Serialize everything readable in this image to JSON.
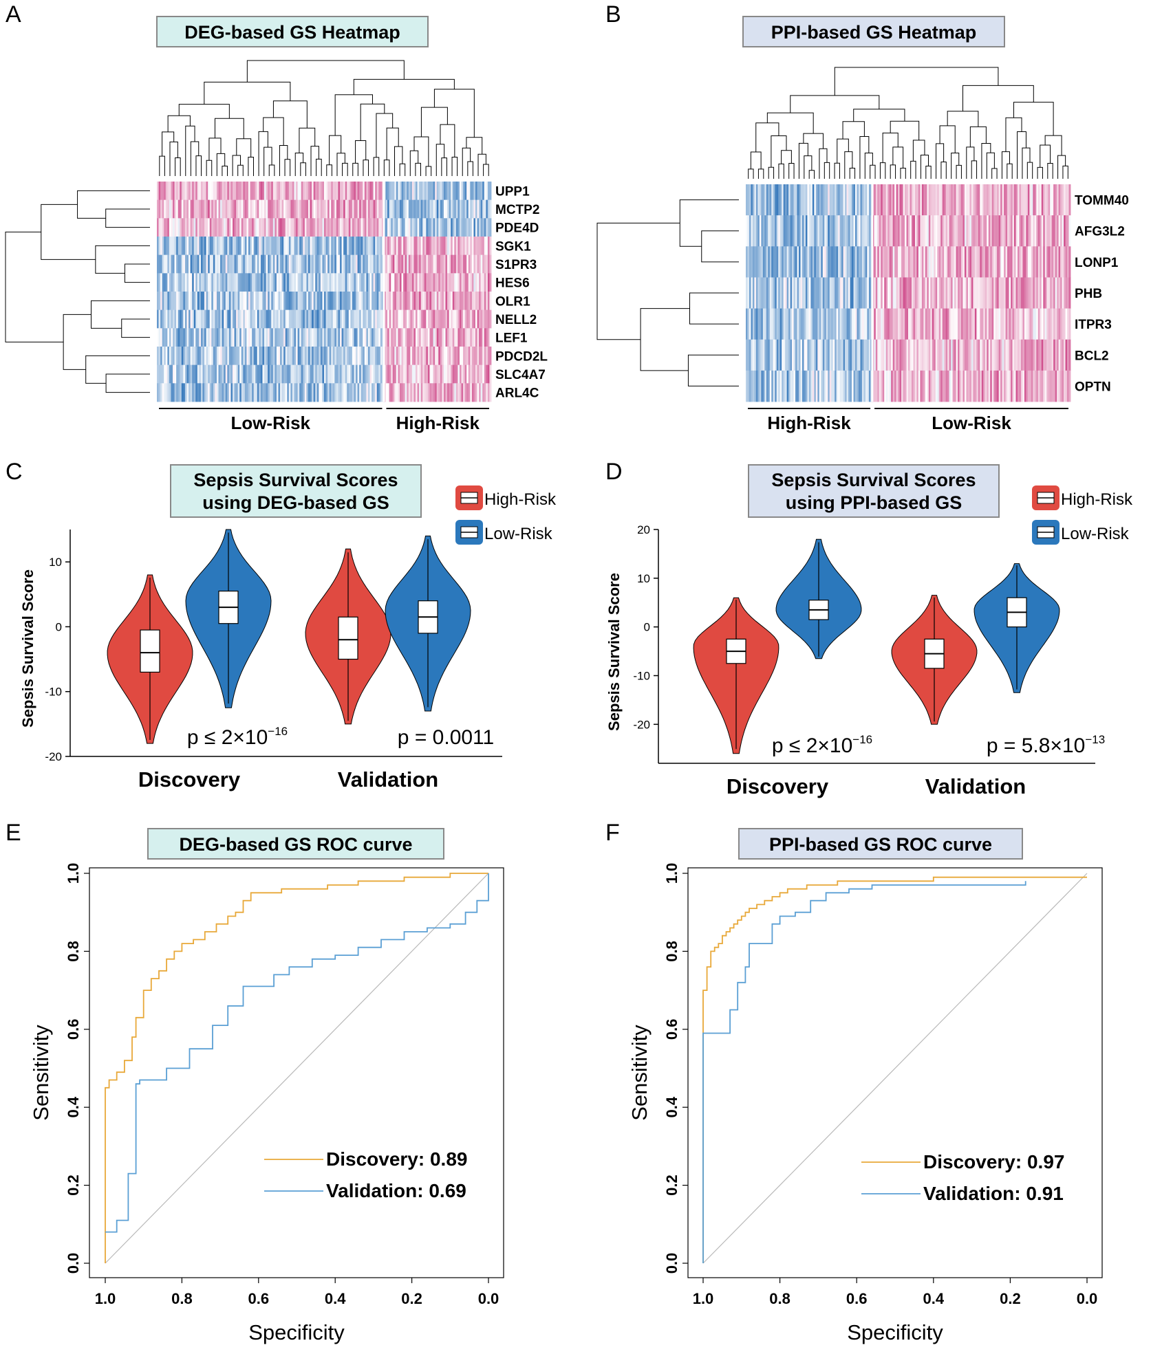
{
  "panels": {
    "A": "A",
    "B": "B",
    "C": "C",
    "D": "D",
    "E": "E",
    "F": "F"
  },
  "colors": {
    "heat_high": "#d0508e",
    "heat_low": "#3a7bbd",
    "violin_high": "#e04a41",
    "violin_low": "#2b78bc",
    "roc_discovery": "#e8a838",
    "roc_validation": "#5a9fd4",
    "title_teal": "#d6f0ee",
    "title_lavender": "#d9e1f0"
  },
  "chart_data": [
    {
      "id": "A",
      "type": "heatmap",
      "title": "DEG-based GS Heatmap",
      "genes": [
        "UPP1",
        "MCTP2",
        "PDE4D",
        "SGK1",
        "S1PR3",
        "HES6",
        "OLR1",
        "NELL2",
        "LEF1",
        "PDCD2L",
        "SLC4A7",
        "ARL4C"
      ],
      "groups": [
        {
          "name": "Low-Risk",
          "fraction": 0.68
        },
        {
          "name": "High-Risk",
          "fraction": 0.32
        }
      ]
    },
    {
      "id": "B",
      "type": "heatmap",
      "title": "PPI-based GS Heatmap",
      "genes": [
        "TOMM40",
        "AFG3L2",
        "LONP1",
        "PHB",
        "ITPR3",
        "BCL2",
        "OPTN"
      ],
      "groups": [
        {
          "name": "High-Risk",
          "fraction": 0.39
        },
        {
          "name": "Low-Risk",
          "fraction": 0.61
        }
      ]
    },
    {
      "id": "C",
      "type": "violin",
      "title_lines": [
        "Sepsis Survival Scores",
        "using DEG-based GS"
      ],
      "ylabel": "Sepsis Survival Score",
      "ylim": [
        -20,
        15
      ],
      "yticks": [
        -20,
        -10,
        0,
        10
      ],
      "legend": [
        "High-Risk",
        "Low-Risk"
      ],
      "categories": [
        "Discovery",
        "Validation"
      ],
      "p_values": [
        {
          "base": "p ≤ 2×10",
          "exp": "−16"
        },
        {
          "base": "p = 0.0011",
          "exp": ""
        }
      ],
      "series": [
        {
          "name": "High-Risk",
          "stats": [
            {
              "min": -18,
              "q1": -7,
              "median": -4,
              "q3": -0.5,
              "max": 8,
              "mode": -4
            },
            {
              "min": -15,
              "q1": -5,
              "median": -2,
              "q3": 1.5,
              "max": 12,
              "mode": -1
            }
          ]
        },
        {
          "name": "Low-Risk",
          "stats": [
            {
              "min": -12.5,
              "q1": 0.5,
              "median": 3,
              "q3": 5.5,
              "max": 15,
              "mode": 4
            },
            {
              "min": -13,
              "q1": -1,
              "median": 1.5,
              "q3": 4,
              "max": 14,
              "mode": 2.5
            }
          ]
        }
      ]
    },
    {
      "id": "D",
      "type": "violin",
      "title_lines": [
        "Sepsis Survival Scores",
        "using PPI-based GS"
      ],
      "ylabel": "Sepsis Survival Score",
      "ylim": [
        -28,
        20
      ],
      "yticks": [
        -20,
        -10,
        0,
        10,
        20
      ],
      "legend": [
        "High-Risk",
        "Low-Risk"
      ],
      "categories": [
        "Discovery",
        "Validation"
      ],
      "p_values": [
        {
          "base": "p ≤ 2×10",
          "exp": "−16"
        },
        {
          "base": "p = 5.8×10",
          "exp": "−13"
        }
      ],
      "series": [
        {
          "name": "High-Risk",
          "stats": [
            {
              "min": -26,
              "q1": -7.5,
              "median": -5,
              "q3": -2.5,
              "max": 6,
              "mode": -4
            },
            {
              "min": -20,
              "q1": -8.5,
              "median": -5.5,
              "q3": -2.5,
              "max": 6.5,
              "mode": -5
            }
          ]
        },
        {
          "name": "Low-Risk",
          "stats": [
            {
              "min": -6.5,
              "q1": 1.5,
              "median": 3.5,
              "q3": 5.5,
              "max": 18,
              "mode": 3.5
            },
            {
              "min": -13.5,
              "q1": 0,
              "median": 3,
              "q3": 6,
              "max": 13,
              "mode": 3.5
            }
          ]
        }
      ]
    },
    {
      "id": "E",
      "type": "line",
      "title": "DEG-based GS ROC curve",
      "xlabel": "Specificity",
      "ylabel": "Sensitivity",
      "xlim": [
        1.0,
        0.0
      ],
      "ylim": [
        0.0,
        1.0
      ],
      "xticks": [
        "1.0",
        "0.8",
        "0.6",
        "0.4",
        "0.2",
        "0.0"
      ],
      "yticks": [
        "0.0",
        "0.2",
        "0.4",
        "0.6",
        "0.8",
        "1.0"
      ],
      "series": [
        {
          "name": "Discovery",
          "auc": "0.89",
          "label": "Discovery: 0.89",
          "x": [
            1.0,
            1.0,
            0.99,
            0.97,
            0.95,
            0.93,
            0.92,
            0.9,
            0.88,
            0.86,
            0.84,
            0.82,
            0.8,
            0.77,
            0.74,
            0.71,
            0.68,
            0.66,
            0.64,
            0.62,
            0.58,
            0.54,
            0.5,
            0.46,
            0.42,
            0.38,
            0.34,
            0.3,
            0.26,
            0.22,
            0.18,
            0.14,
            0.1,
            0.06,
            0.02,
            0.0
          ],
          "y": [
            0.0,
            0.45,
            0.47,
            0.49,
            0.52,
            0.58,
            0.63,
            0.7,
            0.73,
            0.75,
            0.78,
            0.8,
            0.82,
            0.83,
            0.85,
            0.87,
            0.89,
            0.9,
            0.93,
            0.95,
            0.95,
            0.96,
            0.96,
            0.96,
            0.97,
            0.97,
            0.98,
            0.98,
            0.98,
            0.99,
            0.99,
            0.99,
            1.0,
            1.0,
            1.0,
            1.0
          ]
        },
        {
          "name": "Validation",
          "auc": "0.69",
          "label": "Validation: 0.69",
          "x": [
            1.0,
            0.97,
            0.94,
            0.92,
            0.91,
            0.88,
            0.84,
            0.78,
            0.72,
            0.68,
            0.64,
            0.6,
            0.56,
            0.52,
            0.46,
            0.4,
            0.34,
            0.28,
            0.22,
            0.16,
            0.1,
            0.06,
            0.03,
            0.0
          ],
          "y": [
            0.08,
            0.11,
            0.23,
            0.46,
            0.47,
            0.47,
            0.5,
            0.55,
            0.61,
            0.66,
            0.71,
            0.71,
            0.74,
            0.76,
            0.78,
            0.79,
            0.81,
            0.83,
            0.85,
            0.86,
            0.87,
            0.9,
            0.93,
            1.0
          ]
        }
      ]
    },
    {
      "id": "F",
      "type": "line",
      "title": "PPI-based GS ROC curve",
      "xlabel": "Specificity",
      "ylabel": "Sensitivity",
      "xlim": [
        1.0,
        0.0
      ],
      "ylim": [
        0.0,
        1.0
      ],
      "xticks": [
        "1.0",
        "0.8",
        "0.6",
        "0.4",
        "0.2",
        "0.0"
      ],
      "yticks": [
        "0.0",
        "0.2",
        "0.4",
        "0.6",
        "0.8",
        "1.0"
      ],
      "series": [
        {
          "name": "Discovery",
          "auc": "0.97",
          "label": "Discovery: 0.97",
          "x": [
            1.0,
            1.0,
            0.99,
            0.98,
            0.97,
            0.96,
            0.95,
            0.94,
            0.93,
            0.92,
            0.91,
            0.9,
            0.89,
            0.88,
            0.86,
            0.84,
            0.82,
            0.8,
            0.78,
            0.76,
            0.73,
            0.7,
            0.65,
            0.6,
            0.5,
            0.4,
            0.3,
            0.2,
            0.0
          ],
          "y": [
            0.0,
            0.7,
            0.76,
            0.8,
            0.81,
            0.82,
            0.84,
            0.85,
            0.86,
            0.87,
            0.88,
            0.89,
            0.9,
            0.91,
            0.92,
            0.93,
            0.94,
            0.95,
            0.96,
            0.96,
            0.97,
            0.97,
            0.98,
            0.98,
            0.98,
            0.99,
            0.99,
            0.99,
            0.99
          ]
        },
        {
          "name": "Validation",
          "auc": "0.91",
          "label": "Validation: 0.91",
          "x": [
            1.0,
            1.0,
            0.95,
            0.93,
            0.91,
            0.89,
            0.88,
            0.84,
            0.82,
            0.8,
            0.76,
            0.72,
            0.68,
            0.62,
            0.56,
            0.5,
            0.4,
            0.3,
            0.2,
            0.16,
            0.16
          ],
          "y": [
            0.0,
            0.59,
            0.59,
            0.65,
            0.72,
            0.76,
            0.82,
            0.82,
            0.87,
            0.89,
            0.9,
            0.93,
            0.95,
            0.96,
            0.97,
            0.97,
            0.97,
            0.97,
            0.97,
            0.98,
            0.98
          ]
        }
      ]
    }
  ]
}
